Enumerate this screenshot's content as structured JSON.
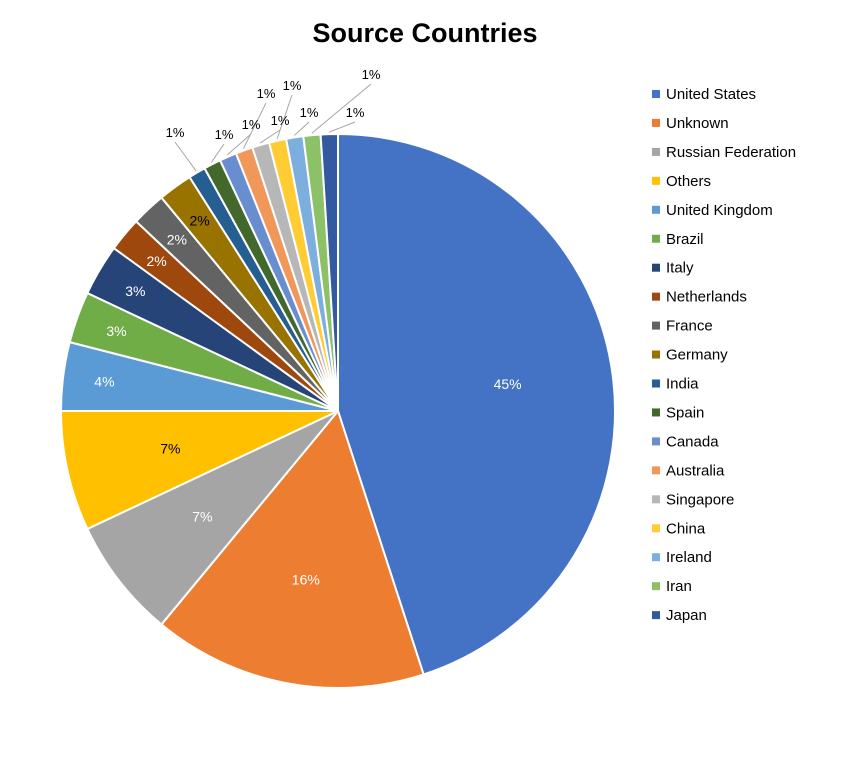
{
  "chart_data": {
    "type": "pie",
    "title": "Source Countries",
    "legend_position": "right",
    "start_angle": "top, clockwise",
    "slices": [
      {
        "label": "United States",
        "value": 45,
        "display": "45%",
        "color": "#4472C4",
        "label_color": "#ffffff",
        "label_outside": false
      },
      {
        "label": "Unknown",
        "value": 16,
        "display": "16%",
        "color": "#ED7D31",
        "label_color": "#ffffff",
        "label_outside": false
      },
      {
        "label": "Russian Federation",
        "value": 7,
        "display": "7%",
        "color": "#A5A5A5",
        "label_color": "#ffffff",
        "label_outside": false
      },
      {
        "label": "Others",
        "value": 7,
        "display": "7%",
        "color": "#FFC000",
        "label_color": "#000000",
        "label_outside": false
      },
      {
        "label": "United Kingdom",
        "value": 4,
        "display": "4%",
        "color": "#5B9BD5",
        "label_color": "#ffffff",
        "label_outside": false
      },
      {
        "label": "Brazil",
        "value": 3,
        "display": "3%",
        "color": "#70AD47",
        "label_color": "#ffffff",
        "label_outside": false
      },
      {
        "label": "Italy",
        "value": 3,
        "display": "3%",
        "color": "#264478",
        "label_color": "#ffffff",
        "label_outside": false
      },
      {
        "label": "Netherlands",
        "value": 2,
        "display": "2%",
        "color": "#9E480E",
        "label_color": "#ffffff",
        "label_outside": false
      },
      {
        "label": "France",
        "value": 2,
        "display": "2%",
        "color": "#636363",
        "label_color": "#ffffff",
        "label_outside": false
      },
      {
        "label": "Germany",
        "value": 2,
        "display": "2%",
        "color": "#997300",
        "label_color": "#000000",
        "label_outside": false
      },
      {
        "label": "India",
        "value": 1,
        "display": "1%",
        "color": "#255E91",
        "label_color": "#000000",
        "label_outside": true
      },
      {
        "label": "Spain",
        "value": 1,
        "display": "1%",
        "color": "#43682B",
        "label_color": "#000000",
        "label_outside": true
      },
      {
        "label": "Canada",
        "value": 1,
        "display": "1%",
        "color": "#698ED0",
        "label_color": "#000000",
        "label_outside": true
      },
      {
        "label": "Australia",
        "value": 1,
        "display": "1%",
        "color": "#F1975A",
        "label_color": "#000000",
        "label_outside": true
      },
      {
        "label": "Singapore",
        "value": 1,
        "display": "1%",
        "color": "#B7B7B7",
        "label_color": "#000000",
        "label_outside": true
      },
      {
        "label": "China",
        "value": 1,
        "display": "1%",
        "color": "#FFCD33",
        "label_color": "#000000",
        "label_outside": true
      },
      {
        "label": "Ireland",
        "value": 1,
        "display": "1%",
        "color": "#7CAFDD",
        "label_color": "#000000",
        "label_outside": true
      },
      {
        "label": "Iran",
        "value": 1,
        "display": "1%",
        "color": "#8CC168",
        "label_color": "#000000",
        "label_outside": true
      },
      {
        "label": "Japan",
        "value": 1,
        "display": "1%",
        "color": "#335AA1",
        "label_color": "#000000",
        "label_outside": true
      }
    ]
  }
}
